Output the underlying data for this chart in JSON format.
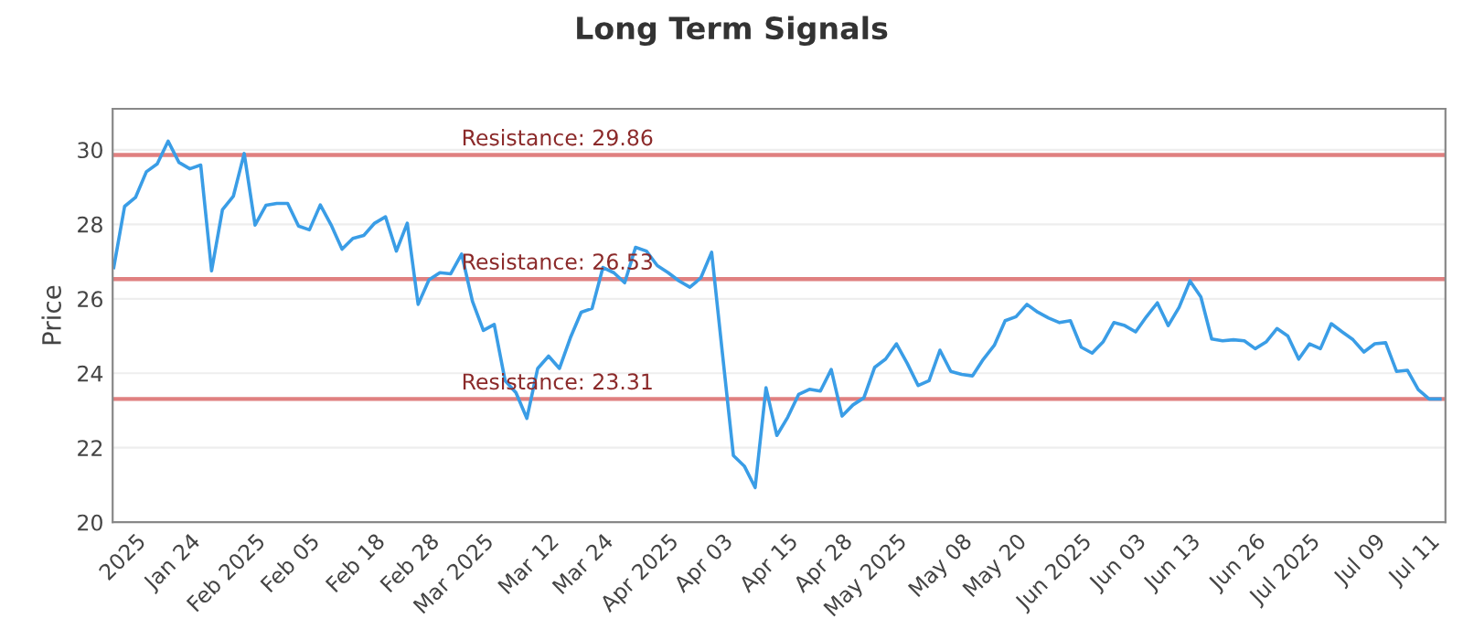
{
  "chart_data": {
    "type": "line",
    "title": "Long Term Signals",
    "ylabel": "Price",
    "categories": [
      null,
      null,
      "2025",
      null,
      null,
      null,
      null,
      "Jan 24",
      null,
      null,
      null,
      null,
      null,
      "Feb 2025",
      null,
      null,
      null,
      null,
      "Feb 05",
      null,
      null,
      null,
      null,
      null,
      "Feb 18",
      null,
      null,
      null,
      null,
      "Feb 28",
      null,
      null,
      null,
      null,
      "Mar 2025",
      null,
      null,
      null,
      null,
      null,
      "Mar 12",
      null,
      null,
      null,
      null,
      "Mar 24",
      null,
      null,
      null,
      null,
      null,
      "Apr 2025",
      null,
      null,
      null,
      null,
      "Apr 03",
      null,
      null,
      null,
      null,
      null,
      "Apr 15",
      null,
      null,
      null,
      null,
      "Apr 28",
      null,
      null,
      null,
      null,
      "May 2025",
      null,
      null,
      null,
      null,
      null,
      "May 08",
      null,
      null,
      null,
      null,
      "May 20",
      null,
      null,
      null,
      null,
      null,
      "Jun 2025",
      null,
      null,
      null,
      null,
      "Jun 03",
      null,
      null,
      null,
      null,
      "Jun 13",
      null,
      null,
      null,
      null,
      null,
      "Jun 26",
      null,
      null,
      null,
      null,
      "Jul 2025",
      null,
      null,
      null,
      null,
      null,
      "Jul 09",
      null,
      null,
      null,
      null,
      "Jul 11",
      null
    ],
    "series": [
      {
        "color": "#3a9de6",
        "values": [
          26.84,
          28.48,
          28.72,
          29.41,
          29.62,
          30.23,
          29.66,
          29.49,
          29.59,
          26.75,
          28.39,
          28.75,
          29.9,
          27.98,
          28.51,
          28.56,
          28.56,
          27.95,
          27.85,
          28.52,
          27.98,
          27.33,
          27.62,
          27.7,
          28.03,
          28.2,
          27.28,
          28.03,
          25.85,
          26.51,
          26.7,
          26.67,
          27.2,
          25.93,
          25.15,
          25.31,
          23.8,
          23.48,
          22.79,
          24.13,
          24.46,
          24.13,
          24.95,
          25.64,
          25.74,
          26.84,
          26.7,
          26.43,
          27.38,
          27.28,
          26.89,
          26.7,
          26.48,
          26.31,
          26.56,
          27.25,
          24.51,
          21.79,
          21.51,
          20.93,
          23.61,
          22.33,
          22.82,
          23.43,
          23.57,
          23.52,
          24.1,
          22.85,
          23.15,
          23.34,
          24.16,
          24.38,
          24.79,
          24.26,
          23.67,
          23.8,
          24.62,
          24.05,
          23.97,
          23.93,
          24.38,
          24.75,
          25.41,
          25.52,
          25.85,
          25.64,
          25.48,
          25.36,
          25.41,
          24.7,
          24.54,
          24.84,
          25.36,
          25.28,
          25.11,
          25.52,
          25.89,
          25.28,
          25.77,
          26.48,
          26.05,
          24.92,
          24.87,
          24.9,
          24.87,
          24.66,
          24.84,
          25.2,
          25.0,
          24.38,
          24.79,
          24.66,
          25.33,
          25.11,
          24.9,
          24.57,
          24.79,
          24.82,
          24.05,
          24.08,
          23.56,
          23.31,
          23.31
        ]
      }
    ],
    "ylim": [
      20,
      31.1
    ],
    "yticks": [
      20,
      22,
      24,
      26,
      28,
      30
    ],
    "grid": "y",
    "legend": false,
    "marker": "none",
    "line_style": "solid",
    "ref_lines": [
      {
        "axis": "y",
        "value": 29.86,
        "label": "Resistance: 29.86",
        "color": "#e08080"
      },
      {
        "axis": "y",
        "value": 26.53,
        "label": "Resistance: 26.53",
        "color": "#e08080"
      },
      {
        "axis": "y",
        "value": 23.31,
        "label": "Resistance: 23.31",
        "color": "#e08080"
      }
    ]
  }
}
